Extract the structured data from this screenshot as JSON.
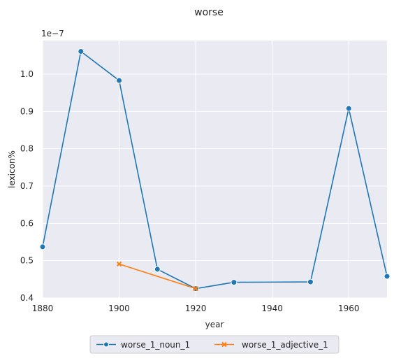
{
  "chart_data": {
    "type": "line",
    "title": "worse",
    "xlabel": "year",
    "ylabel": "lexicon%",
    "y_offset_label": "1e−7",
    "xlim": [
      1880,
      1970
    ],
    "ylim": [
      0.4,
      1.09
    ],
    "x_ticks": [
      1880,
      1900,
      1920,
      1940,
      1960
    ],
    "x_tick_labels": [
      "1880",
      "1900",
      "1920",
      "1940",
      "1960"
    ],
    "y_ticks": [
      0.4,
      0.5,
      0.6,
      0.7,
      0.8,
      0.9,
      1.0
    ],
    "y_tick_labels": [
      "0.4",
      "0.5",
      "0.6",
      "0.7",
      "0.8",
      "0.9",
      "1.0"
    ],
    "grid": true,
    "legend_position": "bottom-center",
    "series": [
      {
        "name": "worse_1_noun_1",
        "color": "#1f77b4",
        "marker": "circle",
        "x": [
          1880,
          1890,
          1900,
          1910,
          1920,
          1930,
          1950,
          1960,
          1970
        ],
        "y": [
          0.537,
          1.061,
          0.983,
          0.477,
          0.425,
          0.442,
          0.443,
          0.908,
          0.458
        ]
      },
      {
        "name": "worse_1_adjective_1",
        "color": "#ff7f0e",
        "marker": "x",
        "x": [
          1900,
          1920
        ],
        "y": [
          0.491,
          0.425
        ]
      }
    ]
  }
}
